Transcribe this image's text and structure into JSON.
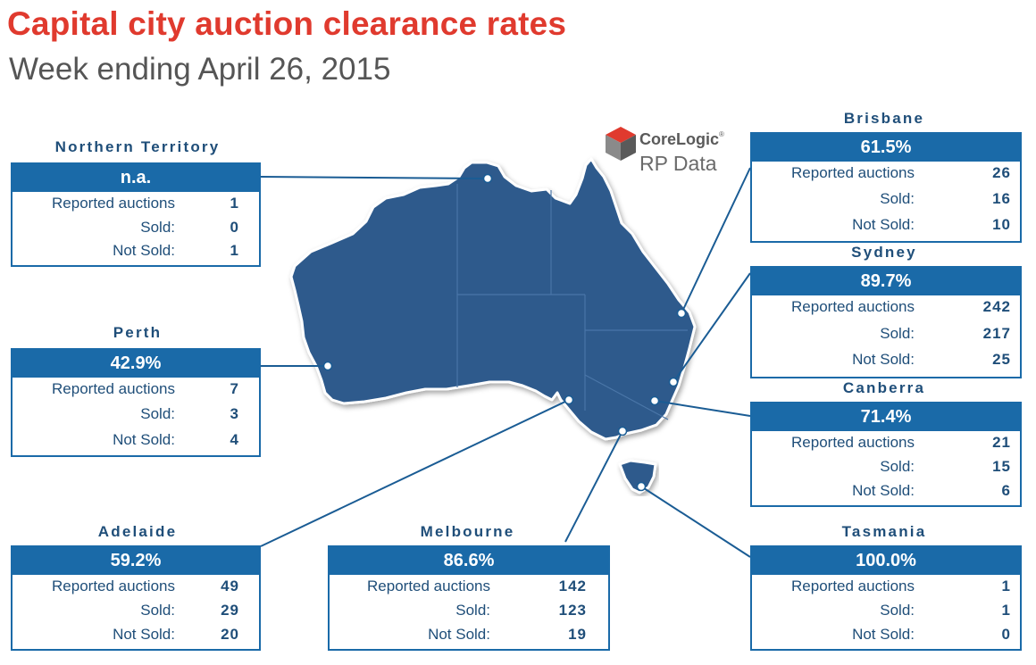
{
  "header": {
    "title": "Capital city auction clearance rates",
    "subtitle": "Week ending April 26, 2015"
  },
  "logo": {
    "brand": "CoreLogic",
    "tm": "®",
    "sub": "RP Data"
  },
  "colors": {
    "title": "#e03a2e",
    "accent": "#1a6aa8",
    "map_fill": "#2e5a8c",
    "text": "#1f4e79"
  },
  "row_labels": {
    "reported": "Reported auctions",
    "sold": "Sold:",
    "not_sold": "Not Sold:"
  },
  "chart_data": {
    "type": "table",
    "title": "Capital city auction clearance rates",
    "subtitle": "Week ending April 26, 2015",
    "columns": [
      "Clearance rate",
      "Reported auctions",
      "Sold",
      "Not Sold"
    ],
    "regions": [
      {
        "name": "Northern Territory",
        "rate": "n.a.",
        "reported": "1",
        "sold": "0",
        "not_sold": "1"
      },
      {
        "name": "Perth",
        "rate": "42.9%",
        "reported": "7",
        "sold": "3",
        "not_sold": "4"
      },
      {
        "name": "Adelaide",
        "rate": "59.2%",
        "reported": "49",
        "sold": "29",
        "not_sold": "20"
      },
      {
        "name": "Melbourne",
        "rate": "86.6%",
        "reported": "142",
        "sold": "123",
        "not_sold": "19"
      },
      {
        "name": "Brisbane",
        "rate": "61.5%",
        "reported": "26",
        "sold": "16",
        "not_sold": "10"
      },
      {
        "name": "Sydney",
        "rate": "89.7%",
        "reported": "242",
        "sold": "217",
        "not_sold": "25"
      },
      {
        "name": "Canberra",
        "rate": "71.4%",
        "reported": "21",
        "sold": "15",
        "not_sold": "6"
      },
      {
        "name": "Tasmania",
        "rate": "100.0%",
        "reported": "1",
        "sold": "1",
        "not_sold": "0"
      }
    ]
  }
}
